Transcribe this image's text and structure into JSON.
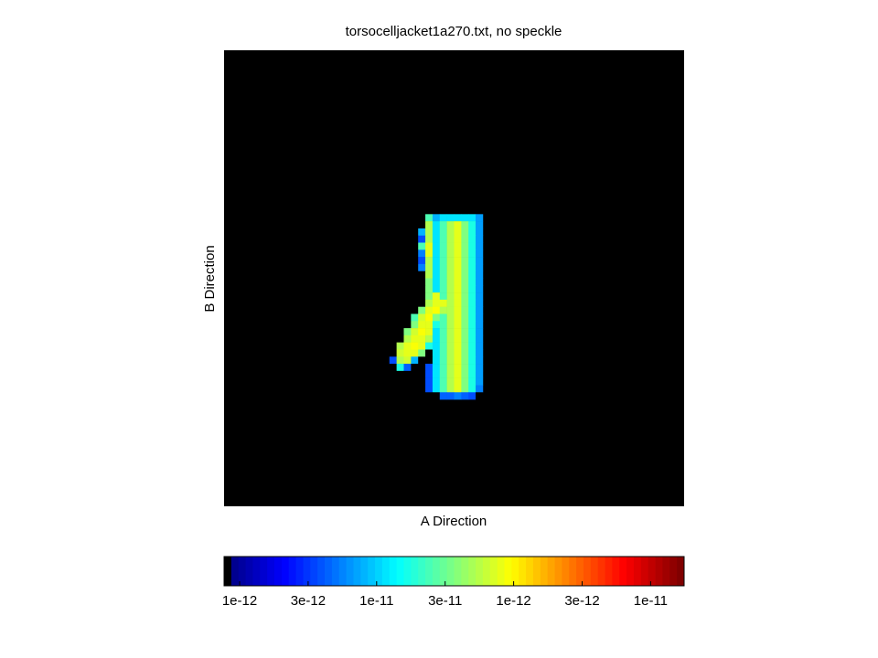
{
  "chart_data": {
    "type": "heatmap",
    "title": "torsocelljacket1a270.txt, no speckle",
    "xlabel": "A Direction",
    "ylabel": "B Direction",
    "xlim": [
      0,
      64
    ],
    "ylim": [
      0,
      64
    ],
    "x": [
      23,
      24,
      25,
      26,
      27,
      28,
      29,
      30,
      31,
      32,
      33,
      34,
      35
    ],
    "y": [
      23,
      24,
      25,
      26,
      27,
      28,
      29,
      30,
      31,
      32,
      33,
      34,
      35,
      36,
      37,
      38,
      39,
      40,
      41,
      42,
      43,
      44,
      45,
      46,
      47,
      48
    ],
    "z": [
      [
        0,
        0,
        0,
        0,
        0,
        0.45,
        0.3,
        0.35,
        0.35,
        0.35,
        0.35,
        0.35,
        0.28
      ],
      [
        0,
        0,
        0,
        0,
        0,
        0.55,
        0.35,
        0.45,
        0.55,
        0.6,
        0.5,
        0.4,
        0.28
      ],
      [
        0,
        0,
        0,
        0,
        0.3,
        0.55,
        0.35,
        0.45,
        0.55,
        0.6,
        0.5,
        0.4,
        0.28
      ],
      [
        0,
        0,
        0,
        0,
        0.2,
        0.55,
        0.35,
        0.45,
        0.55,
        0.6,
        0.5,
        0.4,
        0.28
      ],
      [
        0,
        0,
        0,
        0,
        0.45,
        0.6,
        0.35,
        0.45,
        0.55,
        0.6,
        0.5,
        0.4,
        0.28
      ],
      [
        0,
        0,
        0,
        0,
        0.25,
        0.6,
        0.35,
        0.45,
        0.55,
        0.6,
        0.5,
        0.4,
        0.28
      ],
      [
        0,
        0,
        0,
        0,
        0.2,
        0.55,
        0.35,
        0.45,
        0.55,
        0.6,
        0.5,
        0.4,
        0.28
      ],
      [
        0,
        0,
        0,
        0,
        0.25,
        0.55,
        0.35,
        0.45,
        0.55,
        0.6,
        0.5,
        0.4,
        0.28
      ],
      [
        0,
        0,
        0,
        0,
        0,
        0.55,
        0.35,
        0.45,
        0.55,
        0.6,
        0.5,
        0.4,
        0.28
      ],
      [
        0,
        0,
        0,
        0,
        0,
        0.5,
        0.35,
        0.45,
        0.55,
        0.6,
        0.5,
        0.4,
        0.28
      ],
      [
        0,
        0,
        0,
        0,
        0,
        0.5,
        0.35,
        0.45,
        0.55,
        0.6,
        0.5,
        0.4,
        0.28
      ],
      [
        0,
        0,
        0,
        0,
        0,
        0.5,
        0.6,
        0.45,
        0.55,
        0.6,
        0.5,
        0.4,
        0.28
      ],
      [
        0,
        0,
        0,
        0,
        0,
        0.55,
        0.6,
        0.6,
        0.55,
        0.6,
        0.5,
        0.4,
        0.28
      ],
      [
        0,
        0,
        0,
        0,
        0.5,
        0.6,
        0.62,
        0.55,
        0.55,
        0.6,
        0.5,
        0.4,
        0.28
      ],
      [
        0,
        0,
        0,
        0.45,
        0.58,
        0.62,
        0.5,
        0.45,
        0.55,
        0.6,
        0.5,
        0.4,
        0.28
      ],
      [
        0,
        0,
        0,
        0.5,
        0.6,
        0.6,
        0.4,
        0.45,
        0.55,
        0.6,
        0.5,
        0.4,
        0.28
      ],
      [
        0,
        0,
        0.5,
        0.58,
        0.62,
        0.6,
        0.35,
        0.45,
        0.55,
        0.6,
        0.5,
        0.4,
        0.28
      ],
      [
        0,
        0,
        0.55,
        0.6,
        0.6,
        0.55,
        0.35,
        0.45,
        0.55,
        0.6,
        0.5,
        0.4,
        0.28
      ],
      [
        0,
        0.55,
        0.6,
        0.62,
        0.6,
        0.4,
        0.35,
        0.45,
        0.55,
        0.6,
        0.5,
        0.4,
        0.28
      ],
      [
        0,
        0.58,
        0.6,
        0.6,
        0.5,
        0,
        0.35,
        0.45,
        0.55,
        0.6,
        0.5,
        0.4,
        0.28
      ],
      [
        0.2,
        0.55,
        0.58,
        0.3,
        0,
        0,
        0.35,
        0.45,
        0.55,
        0.6,
        0.5,
        0.4,
        0.28
      ],
      [
        0,
        0.4,
        0.22,
        0,
        0,
        0.2,
        0.35,
        0.45,
        0.55,
        0.6,
        0.5,
        0.4,
        0.28
      ],
      [
        0,
        0,
        0,
        0,
        0,
        0.2,
        0.35,
        0.45,
        0.55,
        0.6,
        0.5,
        0.4,
        0.28
      ],
      [
        0,
        0,
        0,
        0,
        0,
        0.2,
        0.35,
        0.45,
        0.55,
        0.6,
        0.5,
        0.4,
        0.28
      ],
      [
        0,
        0,
        0,
        0,
        0,
        0.2,
        0.35,
        0.45,
        0.55,
        0.6,
        0.5,
        0.4,
        0.25
      ],
      [
        0,
        0,
        0,
        0,
        0,
        0,
        0,
        0.22,
        0.22,
        0.25,
        0.22,
        0.2,
        0
      ]
    ],
    "colorbar_labels": [
      "1e-12",
      "3e-12",
      "1e-11",
      "3e-11",
      "1e-12",
      "3e-12",
      "1e-11"
    ]
  }
}
